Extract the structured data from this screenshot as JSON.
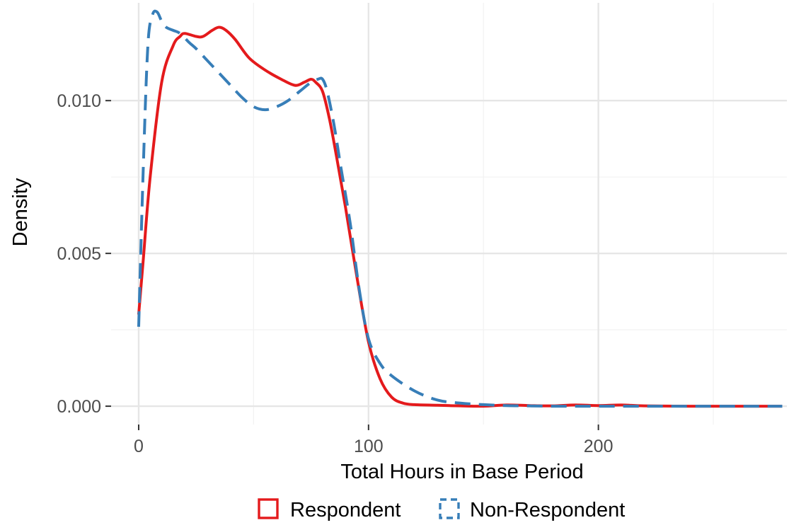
{
  "chart_data": {
    "type": "line",
    "title": "",
    "xlabel": "Total Hours in Base Period",
    "ylabel": "Density",
    "xlim": [
      -12,
      282
    ],
    "ylim": [
      -0.0006,
      0.0132
    ],
    "x_ticks": [
      0,
      100,
      200
    ],
    "x_tick_labels": [
      "0",
      "100",
      "200"
    ],
    "y_ticks": [
      0.0,
      0.005,
      0.01
    ],
    "y_tick_labels": [
      "0.000",
      "0.005",
      "0.010"
    ],
    "grid": true,
    "legend_position": "bottom",
    "series": [
      {
        "name": "Respondent",
        "color": "#E41A1C",
        "dash": "solid",
        "x": [
          0,
          2,
          5,
          10,
          15,
          18,
          20,
          25,
          28,
          32,
          35,
          38,
          42,
          48,
          55,
          62,
          68,
          72,
          75,
          77,
          80,
          83,
          86,
          90,
          95,
          100,
          105,
          110,
          115,
          120,
          130,
          140,
          150,
          160,
          170,
          180,
          190,
          200,
          210,
          220,
          240,
          260,
          280
        ],
        "y": [
          0.003,
          0.0048,
          0.0075,
          0.0106,
          0.0118,
          0.0121,
          0.0122,
          0.0121,
          0.0121,
          0.0123,
          0.0124,
          0.0123,
          0.012,
          0.0114,
          0.011,
          0.0107,
          0.0105,
          0.0106,
          0.0107,
          0.0106,
          0.0103,
          0.0094,
          0.0082,
          0.0065,
          0.0042,
          0.0021,
          0.0009,
          0.0003,
          0.0001,
          5e-05,
          3e-05,
          1e-05,
          0.0,
          4e-05,
          2e-05,
          1e-05,
          4e-05,
          2e-05,
          4e-05,
          1e-05,
          0.0,
          0.0,
          0.0
        ]
      },
      {
        "name": "Non-Respondent",
        "color": "#377EB8",
        "dash": "dashed",
        "x": [
          0,
          2,
          4,
          6,
          8,
          10,
          12,
          15,
          18,
          22,
          25,
          30,
          35,
          40,
          45,
          50,
          55,
          60,
          65,
          70,
          75,
          78,
          80,
          82,
          85,
          88,
          92,
          96,
          100,
          105,
          110,
          120,
          130,
          140,
          150,
          160,
          170,
          180,
          190,
          200,
          220,
          240,
          260,
          280
        ],
        "y": [
          0.0026,
          0.0078,
          0.0118,
          0.0128,
          0.0129,
          0.0126,
          0.0124,
          0.0123,
          0.0122,
          0.0119,
          0.0117,
          0.0113,
          0.0109,
          0.0105,
          0.0101,
          0.0098,
          0.0097,
          0.0098,
          0.01,
          0.0103,
          0.0106,
          0.0107,
          0.0107,
          0.0103,
          0.0092,
          0.0078,
          0.006,
          0.0038,
          0.0022,
          0.0014,
          0.001,
          0.0005,
          0.0002,
          0.0001,
          5e-05,
          2e-05,
          1e-05,
          0.0,
          0.0,
          0.0,
          0.0,
          0.0,
          0.0,
          0.0
        ]
      }
    ]
  }
}
